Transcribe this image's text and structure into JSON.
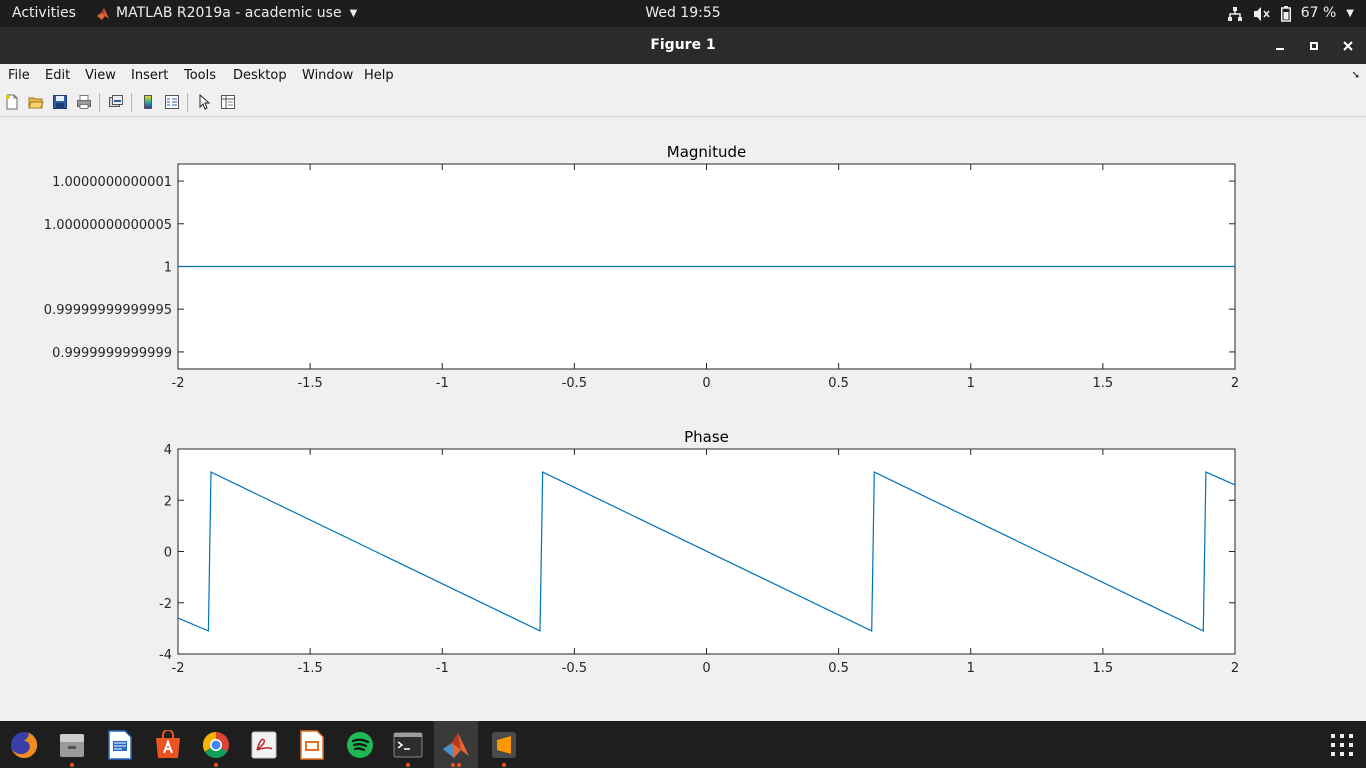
{
  "topbar": {
    "activities": "Activities",
    "app_menu": "MATLAB R2019a - academic use",
    "clock": "Wed 19:55",
    "battery": "67 %"
  },
  "window": {
    "title": "Figure 1"
  },
  "menubar": {
    "items": [
      "File",
      "Edit",
      "View",
      "Insert",
      "Tools",
      "Desktop",
      "Window",
      "Help"
    ]
  },
  "toolbar": {
    "icons": [
      "new-figure-icon",
      "open-file-icon",
      "save-icon",
      "print-icon",
      "link-plot-icon",
      "colorbar-icon",
      "legend-icon",
      "edit-plot-icon",
      "property-inspector-icon"
    ]
  },
  "chart_data": [
    {
      "type": "line",
      "title": "Magnitude",
      "xlabel": "",
      "ylabel": "",
      "xlim": [
        -2,
        2
      ],
      "ylim": [
        0.99999999999988,
        1.00000000000012
      ],
      "xticks": [
        "-2",
        "-1.5",
        "-1",
        "-0.5",
        "0",
        "0.5",
        "1",
        "1.5",
        "2"
      ],
      "yticks": [
        "0.9999999999999",
        "0.99999999999995",
        "1",
        "1.00000000000005",
        "1.0000000000001"
      ],
      "ytick_values": [
        0.9999999999999,
        0.99999999999995,
        1,
        1.00000000000005,
        1.0000000000001
      ],
      "series": [
        {
          "x": [
            -2,
            2
          ],
          "y": [
            1,
            1
          ],
          "color": "#0072bd"
        }
      ],
      "grid": false
    },
    {
      "type": "line",
      "title": "Phase",
      "xlabel": "",
      "ylabel": "",
      "xlim": [
        -2,
        2
      ],
      "ylim": [
        -4,
        4
      ],
      "xticks": [
        "-2",
        "-1.5",
        "-1",
        "-0.5",
        "0",
        "0.5",
        "1",
        "1.5",
        "2"
      ],
      "yticks": [
        "-4",
        "-2",
        "0",
        "2",
        "4"
      ],
      "ytick_values": [
        -4,
        -2,
        0,
        2,
        4
      ],
      "series": [
        {
          "x": [
            -2.0,
            -1.885,
            -1.875,
            -0.63,
            -0.62,
            0.625,
            0.635,
            1.88,
            1.89,
            2.0
          ],
          "y": [
            -2.6,
            -3.1,
            3.1,
            -3.1,
            3.1,
            -3.1,
            3.1,
            -3.1,
            3.1,
            2.6
          ],
          "color": "#0072bd"
        }
      ],
      "grid": false
    }
  ],
  "dock": {
    "apps": [
      "firefox-icon",
      "files-icon",
      "writer-icon",
      "software-icon",
      "chrome-icon",
      "pdf-viewer-icon",
      "impress-icon",
      "spotify-icon",
      "terminal-icon",
      "matlab-icon",
      "sublime-text-icon"
    ],
    "running": [
      "files-icon",
      "chrome-icon",
      "terminal-icon",
      "matlab-icon",
      "sublime-text-icon"
    ]
  }
}
